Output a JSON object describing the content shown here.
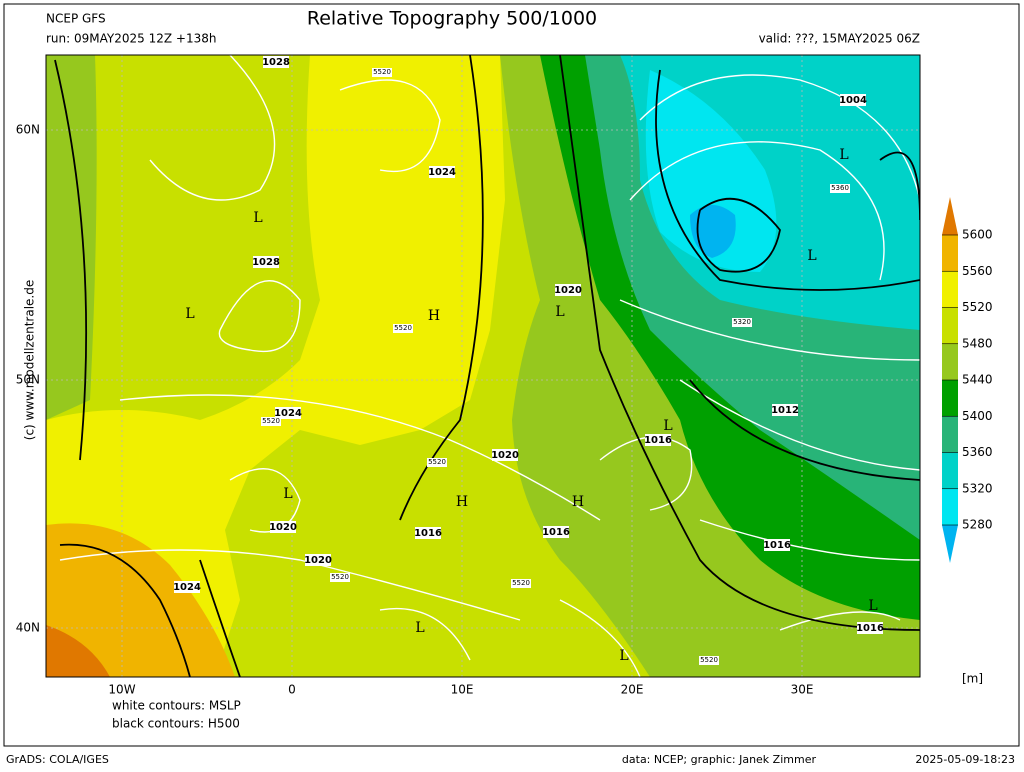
{
  "header": {
    "model": "NCEP GFS",
    "title": "Relative Topography 500/1000",
    "run": "run: 09MAY2025 12Z +138h",
    "valid": "valid: ???, 15MAY2025 06Z"
  },
  "map": {
    "lat_labels": [
      "60N",
      "50N",
      "40N"
    ],
    "lon_labels": [
      "10W",
      "0",
      "10E",
      "20E",
      "30E"
    ],
    "pressure_labels": [
      1028,
      1024,
      1028,
      1020,
      1024,
      1020,
      1016,
      1020,
      1016,
      1016,
      1020,
      1024,
      1012,
      1016,
      1016,
      1004
    ],
    "height_labels": [
      5520,
      5520,
      5520,
      5520,
      5520,
      5520,
      5520,
      5360,
      5320
    ],
    "centers": [
      "L",
      "L",
      "H",
      "L",
      "L",
      "H",
      "H",
      "L",
      "L",
      "L",
      "L",
      "L",
      "L"
    ]
  },
  "colorbar": {
    "levels": [
      5600,
      5560,
      5520,
      5480,
      5440,
      5400,
      5360,
      5320,
      5280
    ],
    "colors": [
      "#e07800",
      "#f0b400",
      "#f0f000",
      "#c8e000",
      "#96c81e",
      "#00a000",
      "#28b478",
      "#00d2c8",
      "#00e6f0",
      "#00b4f0"
    ],
    "unit": "[m]"
  },
  "notes": [
    "white contours: MSLP",
    "black contours: H500"
  ],
  "credit": "(c) www.modellzentrale.de",
  "footer": {
    "software": "GrADS: COLA/IGES",
    "source": "data: NCEP; graphic: Janek Zimmer",
    "timestamp": "2025-05-09-18:23"
  }
}
